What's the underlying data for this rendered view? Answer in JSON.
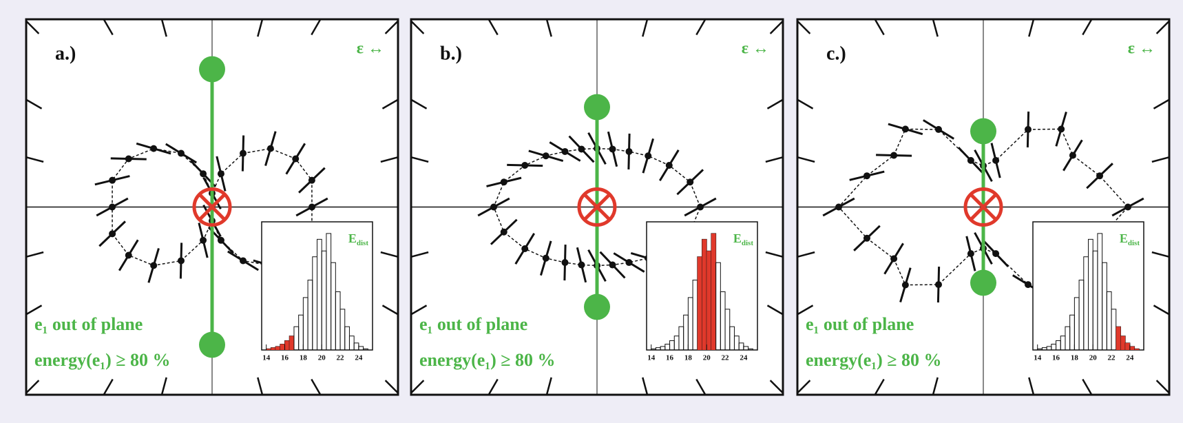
{
  "panels": [
    {
      "label": "a.)",
      "legend": "ε ↔",
      "caption_lines": [
        "e₁ out of plane",
        "energy(e₁) ≥ 80 %"
      ],
      "polar": {
        "angles": [
          0,
          15,
          30,
          45,
          60,
          75,
          90,
          105,
          120,
          135,
          150,
          165,
          180,
          195,
          210,
          225,
          240,
          255,
          270,
          285,
          300,
          315,
          330,
          345
        ],
        "radii": [
          145,
          150,
          140,
          120,
          90,
          50,
          20,
          50,
          90,
          120,
          140,
          150,
          145,
          150,
          140,
          120,
          90,
          50,
          20,
          50,
          90,
          120,
          140,
          150
        ],
        "rlim": [
          0,
          270
        ]
      },
      "markers": [
        200,
        200
      ],
      "inset": {
        "label": "E",
        "label_sub": "dist",
        "bins": [
          14,
          14.5,
          15,
          15.5,
          16,
          16.5,
          17,
          17.5,
          18,
          18.5,
          19,
          19.5,
          20,
          20.5,
          21,
          21.5,
          22,
          22.5,
          23,
          23.5,
          24,
          24.5,
          25
        ],
        "counts": [
          1,
          2,
          3,
          5,
          8,
          12,
          20,
          30,
          45,
          60,
          80,
          95,
          85,
          100,
          75,
          50,
          35,
          20,
          12,
          6,
          3,
          1
        ],
        "selected_counts": [
          1,
          2,
          3,
          5,
          8,
          12,
          0,
          0,
          0,
          0,
          0,
          0,
          0,
          0,
          0,
          0,
          0,
          0,
          0,
          0,
          0,
          0
        ],
        "xticks": [
          14,
          16,
          18,
          20,
          22,
          24
        ],
        "ylim": [
          0,
          110
        ]
      }
    },
    {
      "label": "b.)",
      "legend": "ε ↔",
      "caption_lines": [
        "e₁ out of plane",
        "energy(e₁) ≥ 80 %"
      ],
      "polar": {
        "angles": [
          0,
          15,
          30,
          45,
          60,
          75,
          90,
          105,
          120,
          135,
          150,
          165,
          180,
          195,
          210,
          225,
          240,
          255,
          270,
          285,
          300,
          315,
          330,
          345
        ],
        "radii": [
          150,
          140,
          121,
          105,
          93,
          87,
          85,
          87,
          93,
          105,
          121,
          140,
          150,
          140,
          121,
          105,
          93,
          87,
          85,
          87,
          93,
          105,
          121,
          140
        ],
        "rlim": [
          0,
          270
        ]
      },
      "markers": [
        145,
        145
      ],
      "inset": {
        "label": "E",
        "label_sub": "dist",
        "bins": [
          14,
          14.5,
          15,
          15.5,
          16,
          16.5,
          17,
          17.5,
          18,
          18.5,
          19,
          19.5,
          20,
          20.5,
          21,
          21.5,
          22,
          22.5,
          23,
          23.5,
          24,
          24.5,
          25
        ],
        "counts": [
          1,
          2,
          3,
          5,
          8,
          12,
          20,
          30,
          45,
          60,
          80,
          95,
          85,
          100,
          75,
          50,
          35,
          20,
          12,
          6,
          3,
          1
        ],
        "selected_counts": [
          0,
          0,
          0,
          0,
          0,
          0,
          0,
          0,
          0,
          0,
          80,
          95,
          85,
          100,
          0,
          0,
          0,
          0,
          0,
          0,
          0,
          0
        ],
        "xticks": [
          14,
          16,
          18,
          20,
          22,
          24
        ],
        "ylim": [
          0,
          110
        ]
      }
    },
    {
      "label": "c.)",
      "legend": "ε ↔",
      "caption_lines": [
        "e₁ out of plane",
        "energy(e₁) ≥ 80 %"
      ],
      "polar": {
        "angles": [
          0,
          15,
          30,
          45,
          60,
          75,
          90,
          105,
          120,
          135,
          150,
          165,
          180,
          195,
          210,
          225,
          240,
          255,
          270,
          285,
          300,
          315,
          330,
          345
        ],
        "radii": [
          210,
          175,
          150,
          160,
          130,
          70,
          60,
          70,
          130,
          160,
          150,
          175,
          210,
          175,
          150,
          160,
          130,
          70,
          60,
          70,
          130,
          160,
          150,
          175
        ],
        "rlim": [
          0,
          270
        ]
      },
      "markers": [
        110,
        110
      ],
      "inset": {
        "label": "E",
        "label_sub": "dist",
        "bins": [
          14,
          14.5,
          15,
          15.5,
          16,
          16.5,
          17,
          17.5,
          18,
          18.5,
          19,
          19.5,
          20,
          20.5,
          21,
          21.5,
          22,
          22.5,
          23,
          23.5,
          24,
          24.5,
          25
        ],
        "counts": [
          1,
          2,
          3,
          5,
          8,
          12,
          20,
          30,
          45,
          60,
          80,
          95,
          85,
          100,
          75,
          50,
          35,
          20,
          12,
          6,
          3,
          1
        ],
        "selected_counts": [
          0,
          0,
          0,
          0,
          0,
          0,
          0,
          0,
          0,
          0,
          0,
          0,
          0,
          0,
          0,
          0,
          0,
          20,
          12,
          6,
          3,
          1
        ],
        "xticks": [
          14,
          16,
          18,
          20,
          22,
          24
        ],
        "ylim": [
          0,
          110
        ]
      }
    }
  ]
}
